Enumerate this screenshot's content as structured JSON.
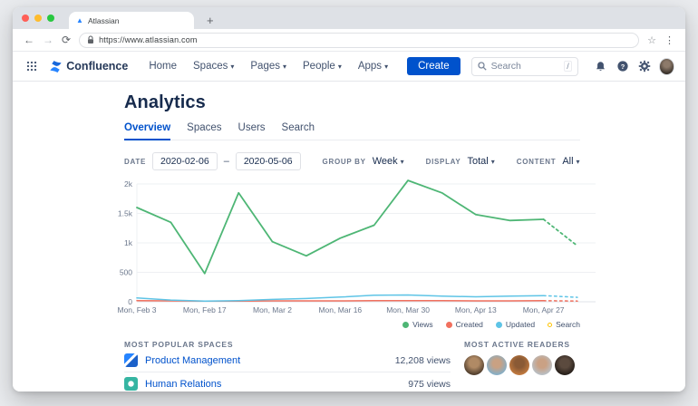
{
  "colors": {
    "accent_blue": "#0052cc",
    "views_green": "#4eb675",
    "created_red": "#f1705e",
    "updated_cyan": "#5ec4e6",
    "search_yellow": "#ffc400"
  },
  "browser": {
    "tab_title": "Atlassian",
    "url": "https://www.atlassian.com"
  },
  "nav": {
    "product_name": "Confluence",
    "items": [
      {
        "label": "Home",
        "caret": false
      },
      {
        "label": "Spaces",
        "caret": true
      },
      {
        "label": "Pages",
        "caret": true
      },
      {
        "label": "People",
        "caret": true
      },
      {
        "label": "Apps",
        "caret": true
      }
    ],
    "create_label": "Create",
    "search_placeholder": "Search",
    "search_shortcut": "/"
  },
  "page": {
    "title": "Analytics",
    "tabs": [
      {
        "label": "Overview",
        "active": true
      },
      {
        "label": "Spaces",
        "active": false
      },
      {
        "label": "Users",
        "active": false
      },
      {
        "label": "Search",
        "active": false
      }
    ]
  },
  "filters": {
    "date_label": "DATE",
    "date_from": "2020-02-06",
    "date_separator": "–",
    "date_to": "2020-05-06",
    "group_by_label": "GROUP BY",
    "group_by_value": "Week",
    "display_label": "DISPLAY",
    "display_value": "Total",
    "content_label": "CONTENT",
    "content_value": "All"
  },
  "chart_data": {
    "type": "line",
    "x": [
      "Feb 3",
      "Feb 10",
      "Feb 17",
      "Feb 24",
      "Mar 2",
      "Mar 9",
      "Mar 16",
      "Mar 23",
      "Mar 30",
      "Apr 6",
      "Apr 13",
      "Apr 20",
      "Apr 27",
      "May 4"
    ],
    "x_tick_labels": [
      "Mon, Feb 3",
      "Mon, Feb 17",
      "Mon, Mar 2",
      "Mon, Mar 16",
      "Mon, Mar 30",
      "Mon, Apr 13",
      "Mon, Apr 27"
    ],
    "x_tick_indices": [
      0,
      2,
      4,
      6,
      8,
      10,
      12
    ],
    "ylim": [
      0,
      2000
    ],
    "y_ticks": [
      {
        "value": 0,
        "label": "0"
      },
      {
        "value": 500,
        "label": "500"
      },
      {
        "value": 1000,
        "label": "1k"
      },
      {
        "value": 1500,
        "label": "1.5k"
      },
      {
        "value": 2000,
        "label": "2k"
      }
    ],
    "grid": true,
    "legend_position": "bottom-right",
    "last_segment_dashed": true,
    "series": [
      {
        "name": "Views",
        "color": "#4eb675",
        "values": [
          1600,
          1350,
          480,
          1850,
          1020,
          780,
          1080,
          1300,
          2060,
          1850,
          1480,
          1380,
          1400,
          950
        ]
      },
      {
        "name": "Created",
        "color": "#f1705e",
        "values": [
          20,
          15,
          12,
          12,
          15,
          15,
          15,
          18,
          20,
          18,
          15,
          15,
          18,
          12
        ]
      },
      {
        "name": "Updated",
        "color": "#5ec4e6",
        "values": [
          65,
          30,
          10,
          20,
          40,
          55,
          80,
          110,
          115,
          95,
          85,
          95,
          105,
          75
        ]
      }
    ],
    "legend": [
      {
        "label": "Views",
        "color": "#4eb675",
        "filled": true
      },
      {
        "label": "Created",
        "color": "#f1705e",
        "filled": true
      },
      {
        "label": "Updated",
        "color": "#5ec4e6",
        "filled": true
      },
      {
        "label": "Search",
        "color": "#ffc400",
        "filled": false
      }
    ]
  },
  "popular_spaces": {
    "heading": "MOST POPULAR SPACES",
    "items": [
      {
        "name": "Product Management",
        "views": "12,208 views"
      },
      {
        "name": "Human Relations",
        "views": "975 views"
      }
    ]
  },
  "active_readers": {
    "heading": "MOST ACTIVE READERS",
    "count": 5
  }
}
